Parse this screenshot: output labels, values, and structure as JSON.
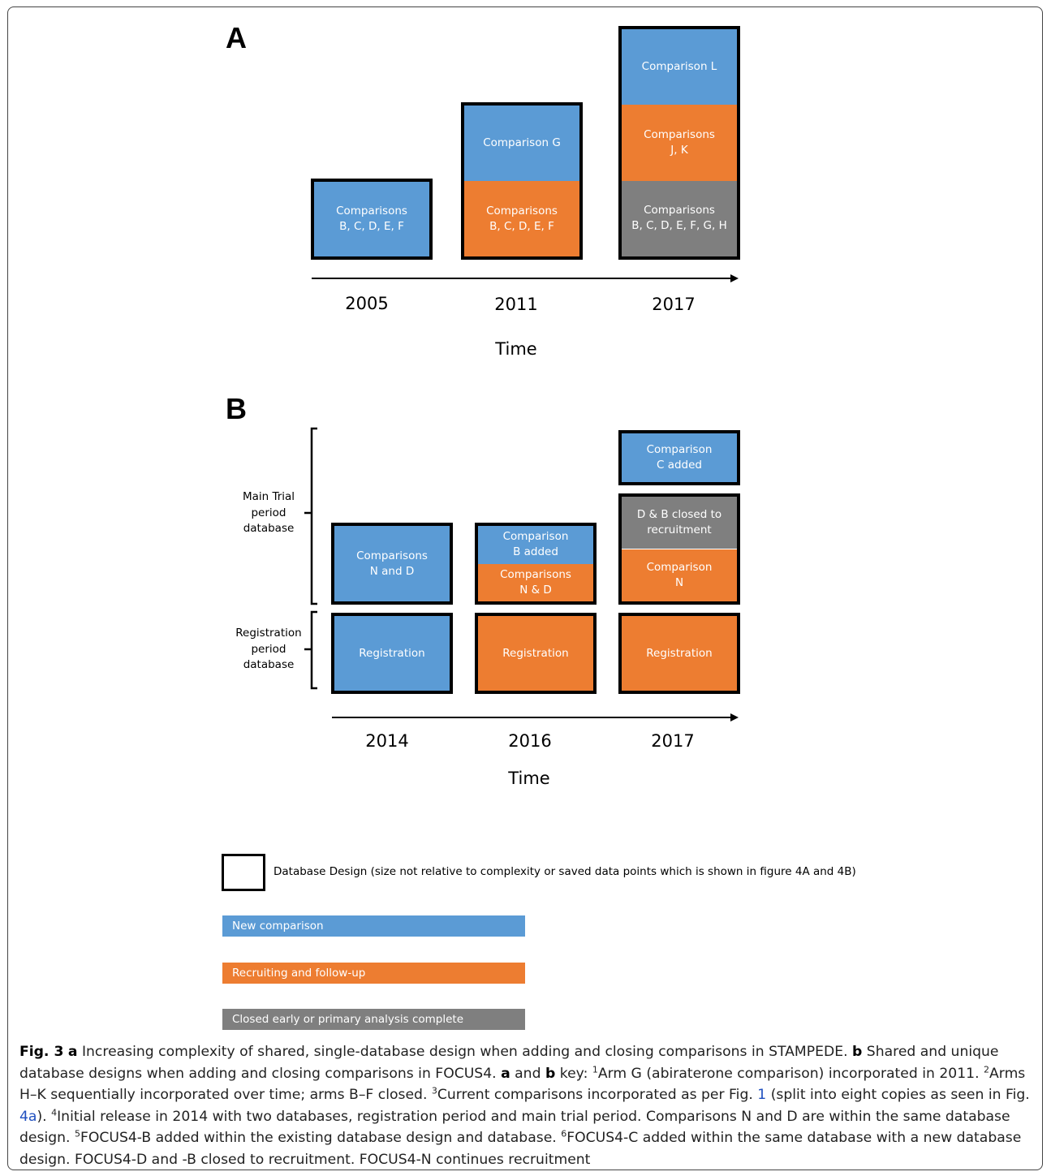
{
  "panel_a": {
    "letter": "A",
    "boxes": [
      {
        "segments": [
          {
            "text": "Comparisons\nB, C, D, E, F",
            "color": "blue"
          }
        ]
      },
      {
        "segments": [
          {
            "text": "Comparison G",
            "color": "blue"
          },
          {
            "text": "Comparisons\nB, C, D, E, F",
            "color": "orange"
          }
        ]
      },
      {
        "segments": [
          {
            "text": "Comparison L",
            "color": "blue"
          },
          {
            "text": "Comparisons\nJ, K",
            "color": "orange"
          },
          {
            "text": "Comparisons\nB, C, D, E, F, G, H",
            "color": "gray"
          }
        ]
      }
    ],
    "years": [
      "2005",
      "2011",
      "2017"
    ],
    "time_label": "Time"
  },
  "panel_b": {
    "letter": "B",
    "brackets": [
      {
        "label": "Main Trial\nperiod\ndatabase"
      },
      {
        "label": "Registration\nperiod\ndatabase"
      }
    ],
    "main_boxes": [
      {
        "segments": [
          {
            "text": "Comparisons\nN and D",
            "color": "blue"
          }
        ]
      },
      {
        "segments": [
          {
            "text": "Comparison\nB added",
            "color": "blue"
          },
          {
            "text": "Comparisons\nN & D",
            "color": "orange"
          }
        ]
      },
      {
        "segments": [
          {
            "text": "D & B closed to\nrecruitment",
            "color": "gray"
          },
          {
            "text": "Comparison\nN",
            "color": "orange"
          }
        ]
      }
    ],
    "added_box": {
      "segments": [
        {
          "text": "Comparison\nC added",
          "color": "blue"
        }
      ]
    },
    "registration_boxes": [
      {
        "text": "Registration",
        "color": "blue"
      },
      {
        "text": "Registration",
        "color": "orange"
      },
      {
        "text": "Registration",
        "color": "orange"
      }
    ],
    "years": [
      "2014",
      "2016",
      "2017"
    ],
    "time_label": "Time"
  },
  "legend": {
    "box_label": "Database Design (size not relative to complexity or saved data points which is shown in figure 4A and 4B)",
    "items": [
      {
        "label": "New comparison",
        "color": "#5b9bd5"
      },
      {
        "label": "Recruiting  and follow-up",
        "color": "#ed7d31"
      },
      {
        "label": "Closed early or primary analysis complete",
        "color": "#7f7f7f"
      }
    ]
  },
  "colors": {
    "blue": "#5b9bd5",
    "orange": "#ed7d31",
    "gray": "#7f7f7f"
  },
  "caption": {
    "fig": "Fig. 3",
    "a": "a",
    "t1": " Increasing complexity of shared, single-database design when adding and closing comparisons in STAMPEDE. ",
    "b": "b",
    "t2": " Shared and unique database designs when adding and closing comparisons in FOCUS4. ",
    "a2": "a",
    "t3": " and ",
    "b2": "b",
    "t4": " key: ",
    "s1": "1",
    "t5": "Arm G (abiraterone comparison) incorporated in 2011. ",
    "s2": "2",
    "t6": "Arms H–K sequentially incorporated over time; arms B–F closed. ",
    "s3": "3",
    "t7": "Current comparisons incorporated as per Fig. ",
    "l1": "1",
    "t8": " (split into eight copies as seen in Fig. ",
    "l2": "4a",
    "t9": "). ",
    "s4": "4",
    "t10": "Initial release in 2014 with two databases, registration period and main trial period. Comparisons N and D are within the same database design. ",
    "s5": "5",
    "t11": "FOCUS4-B added within the existing database design and database. ",
    "s6": "6",
    "t12": "FOCUS4-C added within the same database with a new database design. FOCUS4-D and -B closed to recruitment. FOCUS4-N continues recruitment"
  }
}
